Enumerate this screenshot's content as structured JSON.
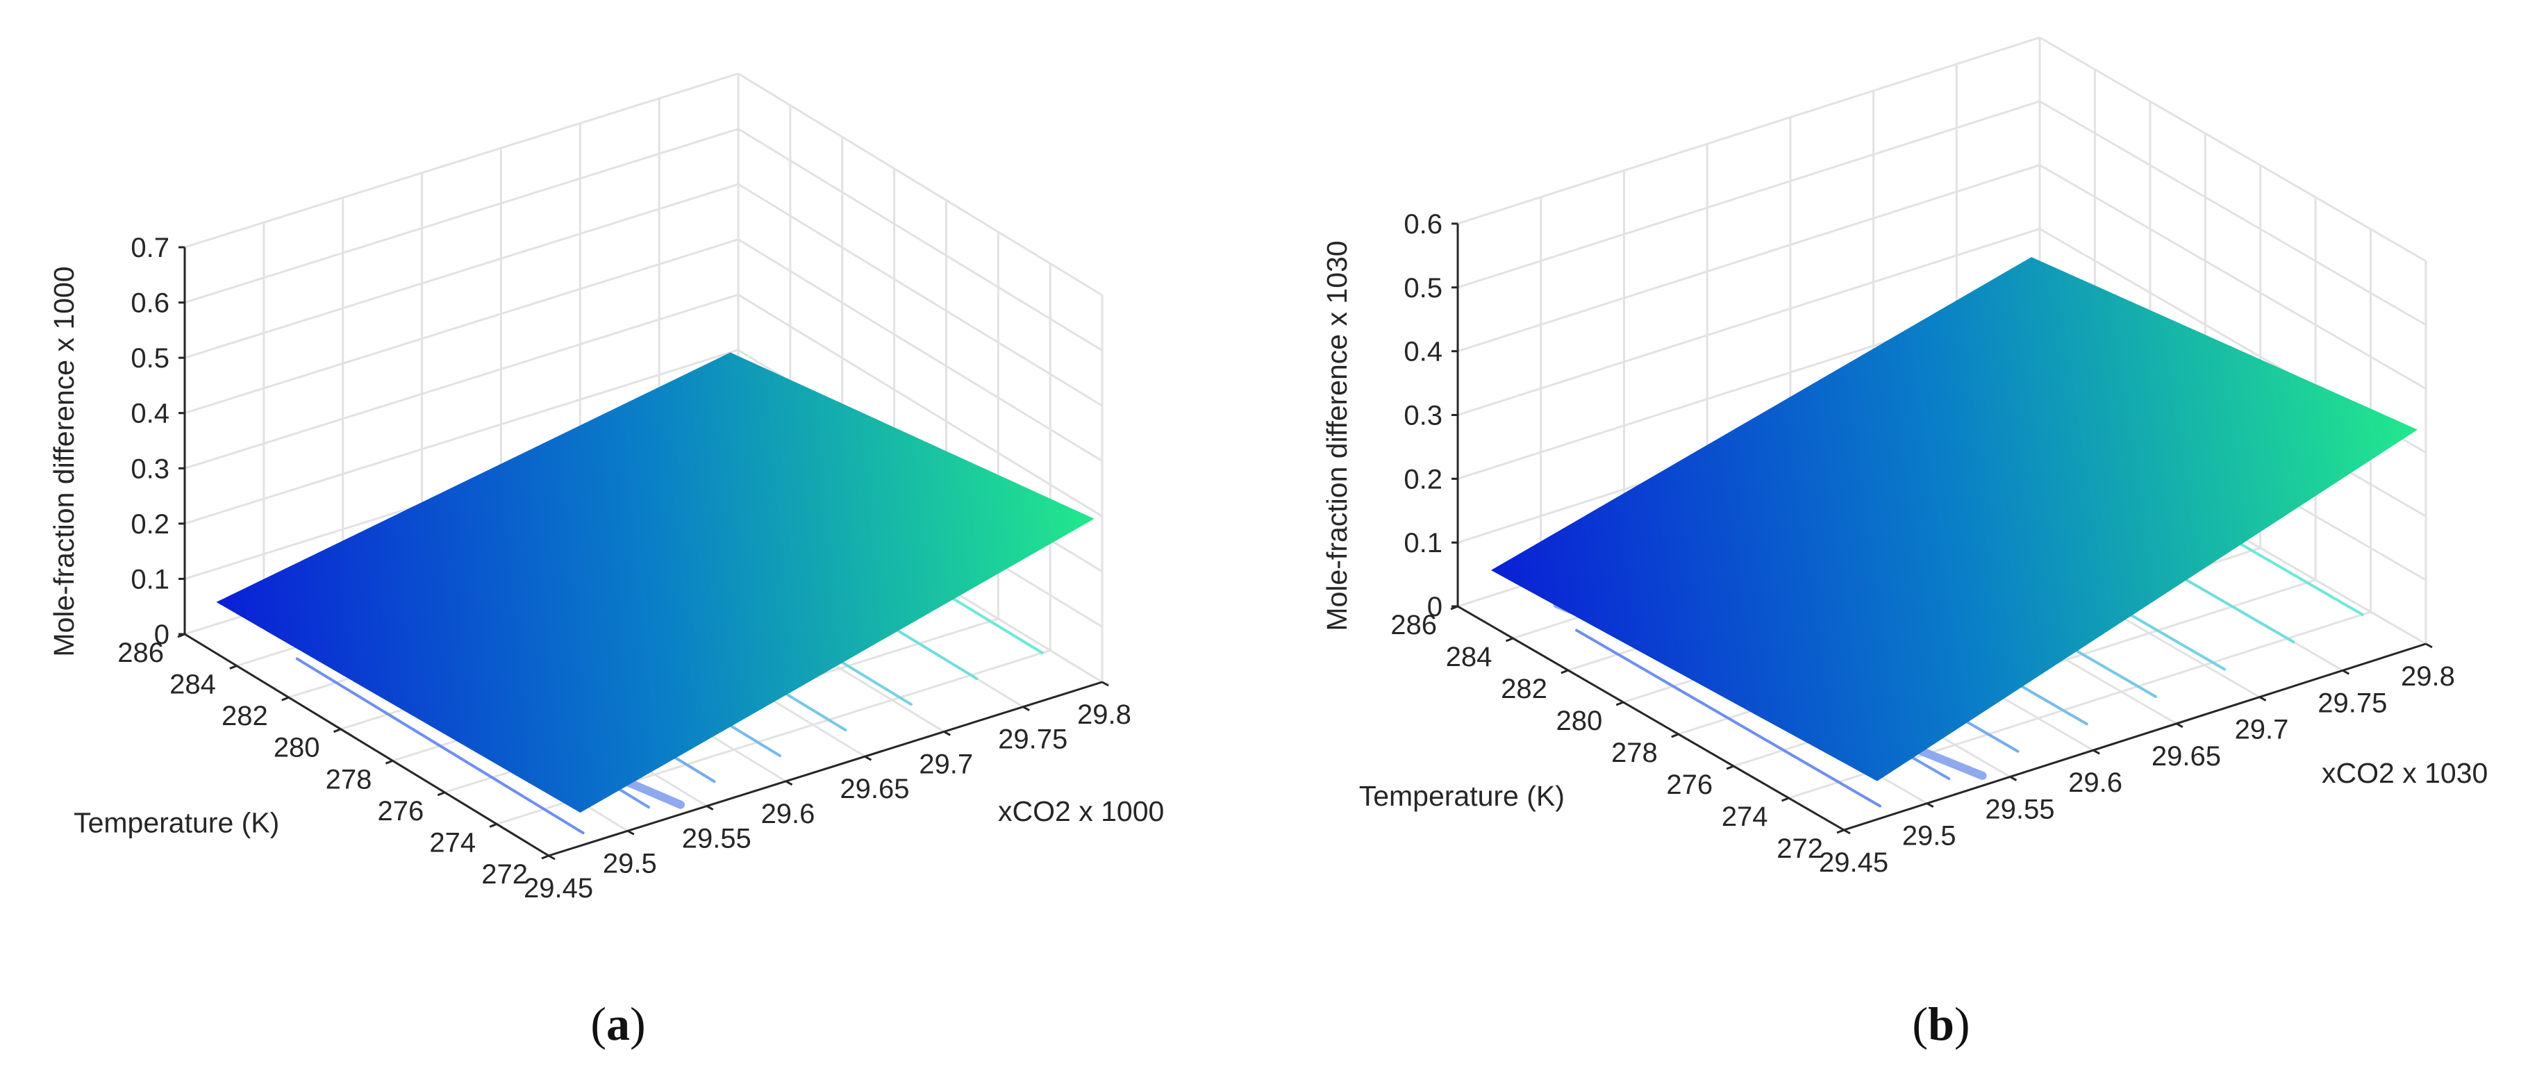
{
  "chart_data": [
    {
      "type": "surface3d",
      "panel": "a",
      "caption_letter": "a",
      "xlabel": "xCO2 x 1000",
      "ylabel": "Temperature (K)",
      "zlabel": "Mole-fraction difference x 1000",
      "xlim": [
        29.45,
        29.8
      ],
      "ylim": [
        272,
        286
      ],
      "zlim": [
        0,
        0.7
      ],
      "xticks": [
        "29.45",
        "29.5",
        "29.55",
        "29.6",
        "29.65",
        "29.7",
        "29.75",
        "29.8"
      ],
      "yticks": [
        "272",
        "274",
        "276",
        "278",
        "280",
        "282",
        "284",
        "286"
      ],
      "zticks": [
        "0",
        "0.1",
        "0.2",
        "0.3",
        "0.4",
        "0.5",
        "0.6",
        "0.7"
      ],
      "surface": {
        "x_range": [
          29.47,
          29.795
        ],
        "y_range": [
          272,
          286
        ],
        "z_corners": {
          "x_min_y_max": 0.04,
          "x_min_y_min": 0.06,
          "x_max_y_max": 0.2,
          "x_max_y_min": 0.3
        },
        "colormap": [
          "#0a1fd6",
          "#0a7fc7",
          "#22e88c"
        ]
      },
      "contours": {
        "style": "projected on floor",
        "count": 8,
        "x_range": [
          29.48,
          29.795
        ],
        "y_range": [
          272.5,
          285.5
        ]
      }
    },
    {
      "type": "surface3d",
      "panel": "b",
      "caption_letter": "b",
      "xlabel": "xCO2 x 1030",
      "ylabel": "Temperature (K)",
      "zlabel": "Mole-fraction difference x 1030",
      "xlim": [
        29.45,
        29.8
      ],
      "ylim": [
        272,
        286
      ],
      "zlim": [
        0,
        0.6
      ],
      "xticks": [
        "29.45",
        "29.5",
        "29.55",
        "29.6",
        "29.65",
        "29.7",
        "29.75",
        "29.8"
      ],
      "yticks": [
        "272",
        "274",
        "276",
        "278",
        "280",
        "282",
        "284",
        "286"
      ],
      "zticks": [
        "0",
        "0.1",
        "0.2",
        "0.3",
        "0.4",
        "0.5",
        "0.6"
      ],
      "surface": {
        "x_range": [
          29.47,
          29.795
        ],
        "y_range": [
          272,
          286
        ],
        "z_corners": {
          "x_min_y_max": 0.04,
          "x_min_y_min": 0.06,
          "x_max_y_max": 0.26,
          "x_max_y_min": 0.34
        },
        "colormap": [
          "#0a1fd6",
          "#0a7fc7",
          "#22e88c"
        ]
      },
      "contours": {
        "style": "projected on floor",
        "count": 8,
        "x_range": [
          29.48,
          29.795
        ],
        "y_range": [
          272.5,
          285.5
        ]
      }
    }
  ]
}
